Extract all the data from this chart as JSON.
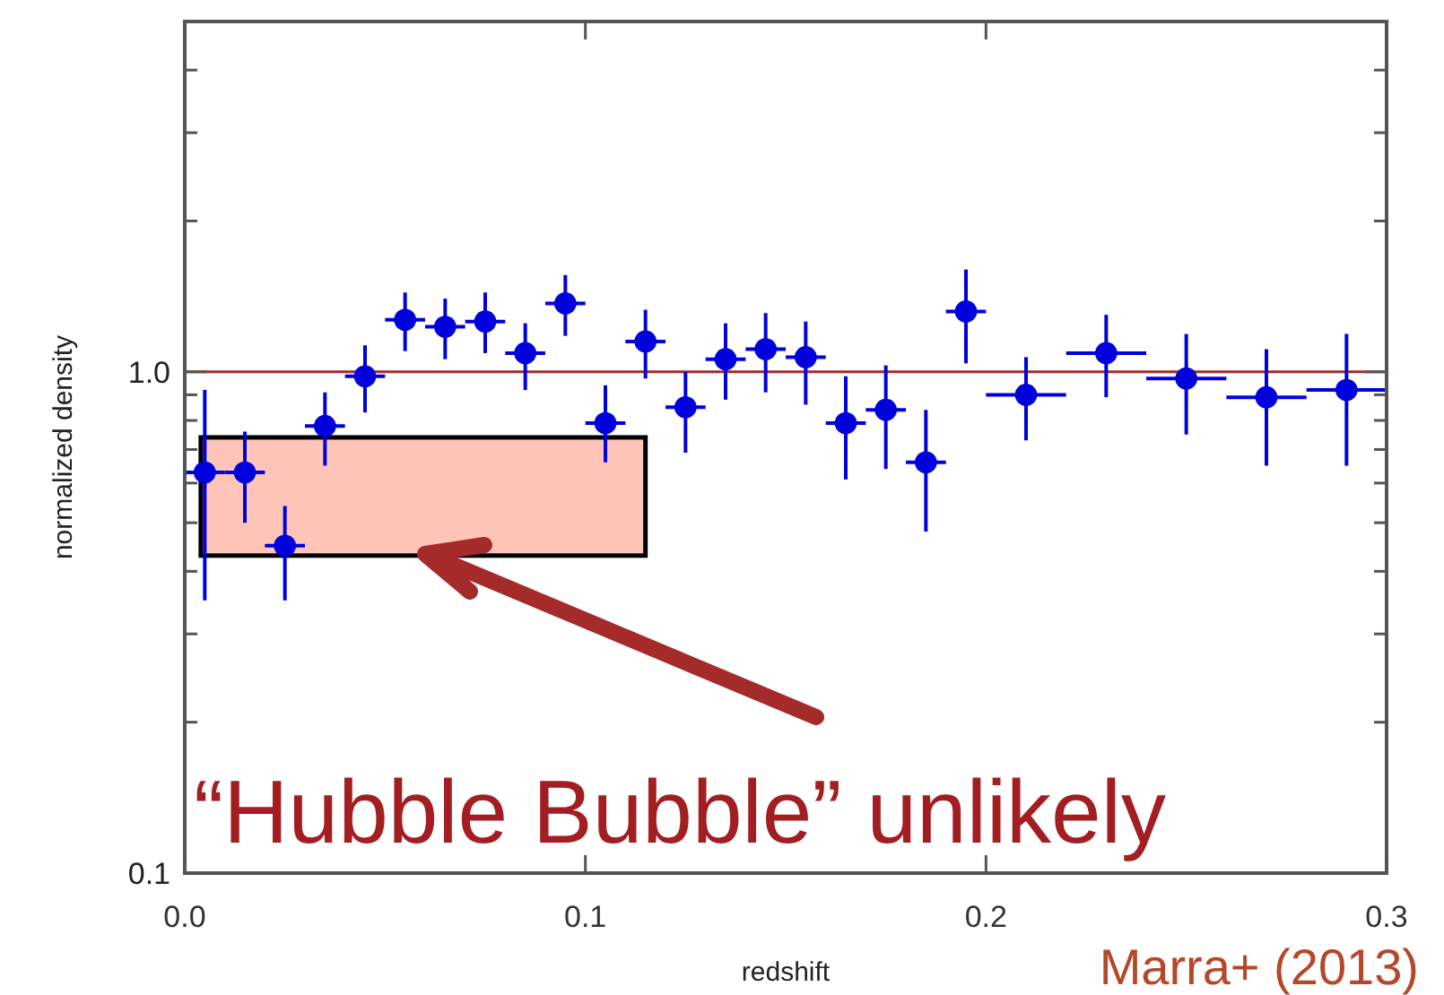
{
  "chart_data": {
    "type": "scatter",
    "xlabel": "redshift",
    "ylabel": "normalized density",
    "log": "y",
    "marker": "circle",
    "xlim": [
      0,
      0.3
    ],
    "ylim": [
      0.1,
      5
    ],
    "xticks": [
      {
        "value": 0,
        "label": "0.0"
      },
      {
        "value": 0.1,
        "label": "0.1"
      },
      {
        "value": 0.2,
        "label": "0.2"
      },
      {
        "value": 0.3,
        "label": "0.3"
      }
    ],
    "yticks": [
      {
        "value": 0.1,
        "label": "0.1"
      },
      {
        "value": 0.2,
        "label": null
      },
      {
        "value": 0.3,
        "label": null
      },
      {
        "value": 0.4,
        "label": null
      },
      {
        "value": 0.5,
        "label": null
      },
      {
        "value": 0.6,
        "label": null
      },
      {
        "value": 0.7,
        "label": null
      },
      {
        "value": 0.8,
        "label": null
      },
      {
        "value": 0.9,
        "label": null
      },
      {
        "value": 1,
        "label": "1.0"
      },
      {
        "value": 2,
        "label": null
      },
      {
        "value": 3,
        "label": null
      },
      {
        "value": 4,
        "label": null
      }
    ],
    "series": [
      {
        "color": "#0000dd",
        "x": [
          0.005,
          0.015,
          0.025,
          0.035,
          0.045,
          0.055,
          0.065,
          0.075,
          0.085,
          0.095,
          0.105,
          0.115,
          0.125,
          0.135,
          0.145,
          0.155,
          0.165,
          0.175,
          0.185,
          0.195,
          0.21,
          0.23,
          0.25,
          0.27,
          0.29
        ],
        "values": [
          0.63,
          0.63,
          0.45,
          0.78,
          0.98,
          1.27,
          1.23,
          1.26,
          1.09,
          1.37,
          0.79,
          1.15,
          0.85,
          1.06,
          1.11,
          1.07,
          0.79,
          0.84,
          0.66,
          1.32,
          0.9,
          1.09,
          0.97,
          0.89,
          0.92
        ],
        "errors": [
          [
            0.35,
            0.92
          ],
          [
            0.5,
            0.76
          ],
          [
            0.35,
            0.54
          ],
          [
            0.65,
            0.91
          ],
          [
            0.83,
            1.13
          ],
          [
            1.1,
            1.44
          ],
          [
            1.06,
            1.4
          ],
          [
            1.09,
            1.44
          ],
          [
            0.92,
            1.25
          ],
          [
            1.18,
            1.56
          ],
          [
            0.66,
            0.94
          ],
          [
            0.97,
            1.33
          ],
          [
            0.69,
            1.0
          ],
          [
            0.88,
            1.25
          ],
          [
            0.91,
            1.31
          ],
          [
            0.86,
            1.26
          ],
          [
            0.61,
            0.98
          ],
          [
            0.64,
            1.03
          ],
          [
            0.48,
            0.84
          ],
          [
            1.04,
            1.6
          ],
          [
            0.73,
            1.07
          ],
          [
            0.89,
            1.3
          ],
          [
            0.75,
            1.19
          ],
          [
            0.65,
            1.11
          ],
          [
            0.65,
            1.19
          ]
        ],
        "xerrors": [
          0.005,
          0.005,
          0.005,
          0.005,
          0.005,
          0.005,
          0.005,
          0.005,
          0.005,
          0.005,
          0.005,
          0.005,
          0.005,
          0.005,
          0.005,
          0.005,
          0.005,
          0.005,
          0.005,
          0.005,
          0.01,
          0.01,
          0.01,
          0.01,
          0.01
        ]
      }
    ],
    "ref_lines": [
      {
        "axis": "y",
        "value": 1,
        "color": "#a52a2a"
      }
    ],
    "bands": [
      {
        "axis": "y",
        "from": 0.43,
        "to": 0.74,
        "color": "#ffb0a0"
      }
    ],
    "annotations": [
      "“Hubble Bubble” unlikely",
      "Marra+ (2013)"
    ]
  }
}
